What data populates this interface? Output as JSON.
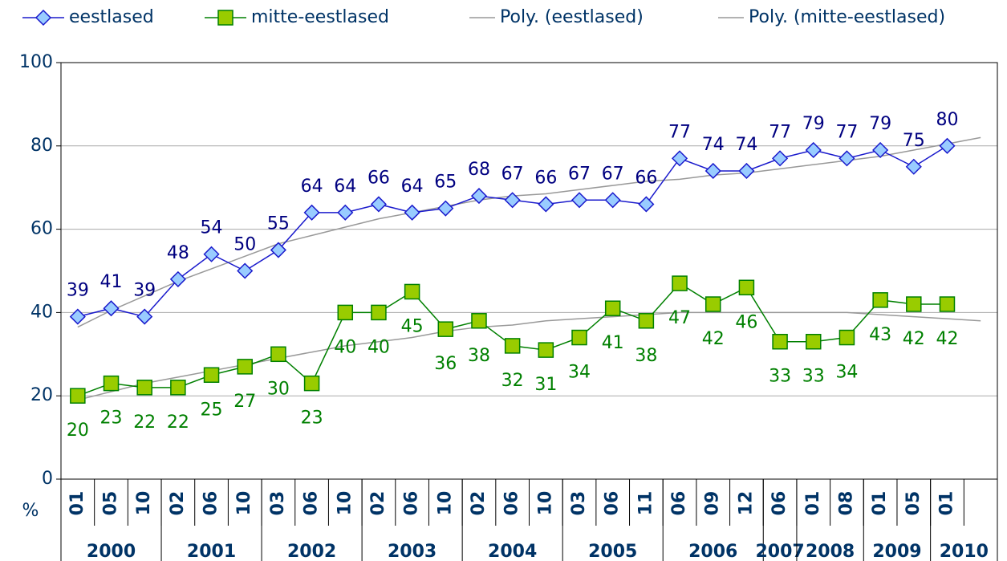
{
  "chart_data": {
    "type": "line",
    "categories": [
      "01",
      "05",
      "10",
      "02",
      "06",
      "10",
      "03",
      "06",
      "10",
      "02",
      "06",
      "10",
      "02",
      "06",
      "10",
      "03",
      "06",
      "11",
      "06",
      "09",
      "12",
      "06",
      "01",
      "08",
      "01",
      "05",
      "01",
      null
    ],
    "category_groups": [
      "2000",
      "2000",
      "2000",
      "2001",
      "2001",
      "2001",
      "2002",
      "2002",
      "2002",
      "2003",
      "2003",
      "2003",
      "2004",
      "2004",
      "2004",
      "2005",
      "2005",
      "2005",
      "2006",
      "2006",
      "2006",
      "2007",
      "2008",
      "2008",
      "2009",
      "2009",
      "2010",
      "2010"
    ],
    "y_unit_label": "%",
    "ylim": [
      0,
      100
    ],
    "yticks": [
      0,
      20,
      40,
      60,
      80,
      100
    ],
    "grid": true,
    "legend": "top",
    "series": [
      {
        "name": "eestlased",
        "color": "#1a1acc",
        "marker": "diamond",
        "marker_fill": "#99ccff",
        "label_color": "#000080",
        "label_position": "above",
        "values": [
          39,
          41,
          39,
          48,
          54,
          50,
          55,
          64,
          64,
          66,
          64,
          65,
          68,
          67,
          66,
          67,
          67,
          66,
          77,
          74,
          74,
          77,
          79,
          77,
          79,
          75,
          80,
          null
        ]
      },
      {
        "name": "mitte-eestlased",
        "color": "#008000",
        "marker": "square",
        "marker_fill": "#99cc00",
        "label_color": "#008000",
        "label_position": "below",
        "values": [
          20,
          23,
          22,
          22,
          25,
          27,
          30,
          23,
          40,
          40,
          45,
          36,
          38,
          32,
          31,
          34,
          41,
          38,
          47,
          42,
          46,
          33,
          33,
          34,
          43,
          42,
          42,
          null
        ]
      },
      {
        "name": "Poly. (eestlased)",
        "color": "#999999",
        "marker": "none",
        "values": [
          36.5,
          40.5,
          44,
          47.5,
          50.5,
          53.5,
          56.5,
          58.5,
          60.5,
          62.5,
          64,
          65.5,
          67,
          68,
          68.5,
          69.5,
          70.5,
          71.5,
          72,
          73,
          73.5,
          74.5,
          75.5,
          76.5,
          77.5,
          79,
          80.5,
          82
        ]
      },
      {
        "name": "Poly. (mitte-eestlased)",
        "color": "#999999",
        "marker": "none",
        "values": [
          19,
          21,
          23,
          24.5,
          26,
          27.5,
          29,
          30.5,
          32,
          33,
          34,
          35.5,
          36.5,
          37,
          38,
          38.5,
          39,
          39.5,
          40,
          40,
          40,
          40,
          40,
          40,
          39.5,
          39,
          38.5,
          38
        ]
      }
    ]
  }
}
